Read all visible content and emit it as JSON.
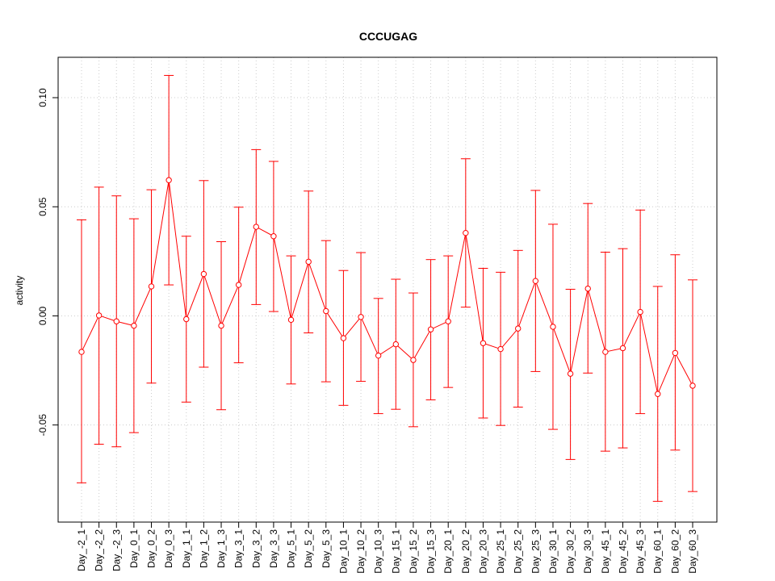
{
  "chart_data": {
    "type": "line",
    "title": "CCCUGAG",
    "xlabel": "",
    "ylabel": "activity",
    "ylim": [
      -0.0945,
      0.1185
    ],
    "yticks": [
      -0.05,
      0.0,
      0.05,
      0.1
    ],
    "ytick_labels": [
      "-0.05",
      "0.00",
      "0.05",
      "0.10"
    ],
    "grid": true,
    "colors": {
      "series": "#ff0000",
      "grid": "#cccccc",
      "axis": "#000000"
    },
    "categories": [
      "Day_-2_1",
      "Day_-2_2",
      "Day_-2_3",
      "Day_0_1",
      "Day_0_2",
      "Day_0_3",
      "Day_1_1",
      "Day_1_2",
      "Day_1_3",
      "Day_3_1",
      "Day_3_2",
      "Day_3_3",
      "Day_5_1",
      "Day_5_2",
      "Day_5_3",
      "Day_10_1",
      "Day_10_2",
      "Day_10_3",
      "Day_15_1",
      "Day_15_2",
      "Day_15_3",
      "Day_20_1",
      "Day_20_2",
      "Day_20_3",
      "Day_25_1",
      "Day_25_2",
      "Day_25_3",
      "Day_30_1",
      "Day_30_2",
      "Day_30_3",
      "Day_45_1",
      "Day_45_2",
      "Day_45_3",
      "Day_60_1",
      "Day_60_2",
      "Day_60_3"
    ],
    "values": [
      -0.0165,
      0.0002,
      -0.0025,
      -0.0045,
      0.0135,
      0.0622,
      -0.0015,
      0.0192,
      -0.0045,
      0.0142,
      0.0408,
      0.0365,
      -0.0018,
      0.0248,
      0.0022,
      -0.0102,
      -0.0005,
      -0.0182,
      -0.013,
      -0.0202,
      -0.0062,
      -0.0025,
      0.038,
      -0.0125,
      -0.0152,
      -0.0058,
      0.016,
      -0.005,
      -0.0265,
      0.0125,
      -0.0165,
      -0.0148,
      0.0018,
      -0.0358,
      -0.017,
      -0.032
    ],
    "upper": [
      0.044,
      0.059,
      0.055,
      0.0445,
      0.0578,
      0.1102,
      0.0365,
      0.062,
      0.034,
      0.0498,
      0.0762,
      0.0708,
      0.0275,
      0.0572,
      0.0345,
      0.0208,
      0.029,
      0.008,
      0.0168,
      0.0105,
      0.0258,
      0.0275,
      0.072,
      0.0218,
      0.02,
      0.03,
      0.0575,
      0.042,
      0.0122,
      0.0515,
      0.0292,
      0.0308,
      0.0485,
      0.0135,
      0.028,
      0.0165
    ],
    "lower": [
      -0.0765,
      -0.0588,
      -0.06,
      -0.0535,
      -0.0308,
      0.0142,
      -0.0395,
      -0.0235,
      -0.043,
      -0.0215,
      0.0052,
      0.002,
      -0.0312,
      -0.0078,
      -0.0302,
      -0.041,
      -0.03,
      -0.0448,
      -0.0428,
      -0.0508,
      -0.0385,
      -0.0328,
      0.004,
      -0.0468,
      -0.0502,
      -0.0418,
      -0.0255,
      -0.052,
      -0.0658,
      -0.0262,
      -0.062,
      -0.0605,
      -0.0448,
      -0.085,
      -0.0615,
      -0.0805
    ]
  }
}
